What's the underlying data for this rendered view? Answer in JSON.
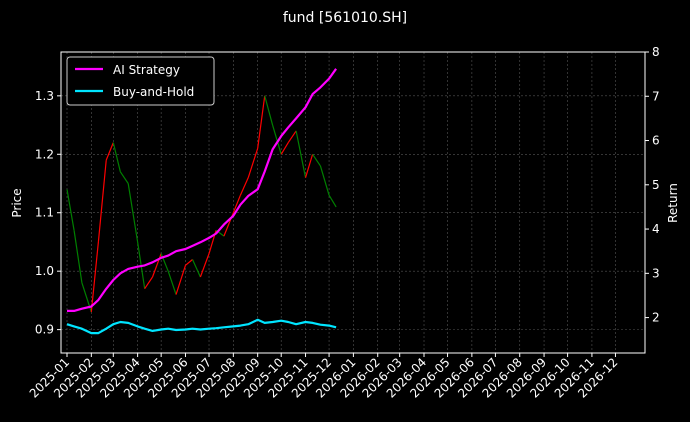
{
  "chart_data": {
    "type": "line",
    "title": "fund [561010.SH]",
    "ylabel": "Price",
    "ylabel_right": "Return",
    "x_range": [
      "2025-01-01",
      "2026-12-31"
    ],
    "ylim": [
      0.86,
      1.375
    ],
    "ylim_right": [
      1.2,
      8.0
    ],
    "x_ticks": [
      "2025-01",
      "2025-02",
      "2025-03",
      "2025-04",
      "2025-05",
      "2025-06",
      "2025-07",
      "2025-08",
      "2025-09",
      "2025-10",
      "2025-11",
      "2025-12",
      "2026-01",
      "2026-02",
      "2026-03",
      "2026-04",
      "2026-05",
      "2026-06",
      "2026-07",
      "2026-08",
      "2026-09",
      "2026-10",
      "2026-11",
      "2026-12"
    ],
    "y_ticks": [
      0.9,
      1.0,
      1.1,
      1.2,
      1.3
    ],
    "y_ticks_right": [
      2,
      3,
      4,
      5,
      6,
      7,
      8
    ],
    "grid": true,
    "legend_position": "top-left",
    "colors": {
      "up": "#ff0000",
      "down": "#008000",
      "strategy": "#ff00ff",
      "buyhold": "#00e5ff",
      "background": "#000000",
      "text": "#ffffff",
      "grid": "#555555"
    },
    "price_series": {
      "dates": [
        "2025-01-01",
        "2025-01-10",
        "2025-01-20",
        "2025-02-01",
        "2025-02-10",
        "2025-02-20",
        "2025-03-01",
        "2025-03-10",
        "2025-03-20",
        "2025-04-01",
        "2025-04-10",
        "2025-04-20",
        "2025-05-01",
        "2025-05-10",
        "2025-05-20",
        "2025-06-01",
        "2025-06-10",
        "2025-06-20",
        "2025-07-01",
        "2025-07-10",
        "2025-07-20",
        "2025-08-01",
        "2025-08-10",
        "2025-08-20",
        "2025-09-01",
        "2025-09-10",
        "2025-09-20",
        "2025-10-01",
        "2025-10-10",
        "2025-10-20",
        "2025-11-01",
        "2025-11-10",
        "2025-11-20",
        "2025-12-01",
        "2025-12-10"
      ],
      "values": [
        1.14,
        1.07,
        0.98,
        0.93,
        1.05,
        1.19,
        1.22,
        1.17,
        1.15,
        1.05,
        0.97,
        0.99,
        1.03,
        1.0,
        0.96,
        1.01,
        1.02,
        0.99,
        1.03,
        1.07,
        1.06,
        1.1,
        1.13,
        1.16,
        1.21,
        1.3,
        1.25,
        1.2,
        1.22,
        1.24,
        1.16,
        1.2,
        1.18,
        1.13,
        1.11
      ]
    },
    "series": [
      {
        "name": "AI Strategy",
        "x": [
          "2025-01-01",
          "2025-01-10",
          "2025-01-20",
          "2025-02-01",
          "2025-02-10",
          "2025-02-20",
          "2025-03-01",
          "2025-03-10",
          "2025-03-20",
          "2025-04-01",
          "2025-04-10",
          "2025-04-20",
          "2025-05-01",
          "2025-05-10",
          "2025-05-20",
          "2025-06-01",
          "2025-06-10",
          "2025-06-20",
          "2025-07-01",
          "2025-07-10",
          "2025-07-20",
          "2025-08-01",
          "2025-08-10",
          "2025-08-20",
          "2025-09-01",
          "2025-09-10",
          "2025-09-20",
          "2025-10-01",
          "2025-10-10",
          "2025-10-20",
          "2025-11-01",
          "2025-11-10",
          "2025-11-20",
          "2025-12-01",
          "2025-12-10"
        ],
        "values": [
          2.15,
          2.15,
          2.2,
          2.25,
          2.4,
          2.65,
          2.85,
          3.0,
          3.1,
          3.15,
          3.18,
          3.25,
          3.35,
          3.4,
          3.5,
          3.55,
          3.62,
          3.7,
          3.8,
          3.9,
          4.1,
          4.3,
          4.55,
          4.75,
          4.9,
          5.3,
          5.8,
          6.1,
          6.3,
          6.5,
          6.75,
          7.05,
          7.2,
          7.4,
          7.62
        ]
      },
      {
        "name": "Buy-and-Hold",
        "x": [
          "2025-01-01",
          "2025-01-10",
          "2025-01-20",
          "2025-02-01",
          "2025-02-10",
          "2025-02-20",
          "2025-03-01",
          "2025-03-10",
          "2025-03-20",
          "2025-04-01",
          "2025-04-10",
          "2025-04-20",
          "2025-05-01",
          "2025-05-10",
          "2025-05-20",
          "2025-06-01",
          "2025-06-10",
          "2025-06-20",
          "2025-07-01",
          "2025-07-10",
          "2025-07-20",
          "2025-08-01",
          "2025-08-10",
          "2025-08-20",
          "2025-09-01",
          "2025-09-10",
          "2025-09-20",
          "2025-10-01",
          "2025-10-10",
          "2025-10-20",
          "2025-11-01",
          "2025-11-10",
          "2025-11-20",
          "2025-12-01",
          "2025-12-10"
        ],
        "values": [
          1.85,
          1.8,
          1.75,
          1.65,
          1.65,
          1.75,
          1.85,
          1.9,
          1.88,
          1.8,
          1.75,
          1.7,
          1.73,
          1.75,
          1.72,
          1.73,
          1.75,
          1.73,
          1.75,
          1.76,
          1.78,
          1.8,
          1.82,
          1.85,
          1.95,
          1.88,
          1.9,
          1.93,
          1.9,
          1.85,
          1.9,
          1.88,
          1.84,
          1.82,
          1.78
        ]
      }
    ]
  }
}
